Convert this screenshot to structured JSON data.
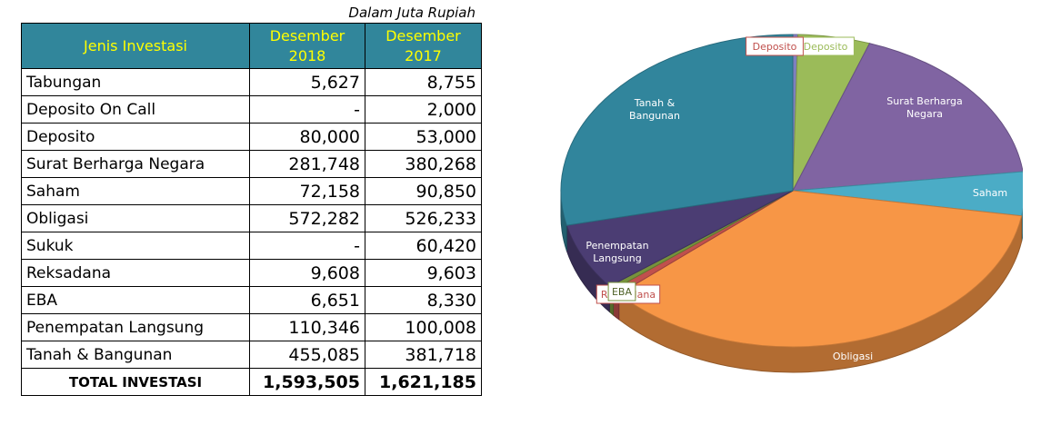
{
  "note": "Dalam Juta Rupiah",
  "table": {
    "header": {
      "category": "Jenis Investasi",
      "col1": "Desember 2018",
      "col2": "Desember 2017"
    },
    "rows": [
      {
        "name": "Tabungan",
        "y2018": "5,627",
        "y2017": "8,755"
      },
      {
        "name": "Deposito On Call",
        "y2018": "-",
        "y2017": "2,000"
      },
      {
        "name": "Deposito",
        "y2018": "80,000",
        "y2017": "53,000"
      },
      {
        "name": "Surat Berharga Negara",
        "y2018": "281,748",
        "y2017": "380,268"
      },
      {
        "name": "Saham",
        "y2018": "72,158",
        "y2017": "90,850"
      },
      {
        "name": "Obligasi",
        "y2018": "572,282",
        "y2017": "526,233"
      },
      {
        "name": "Sukuk",
        "y2018": "-",
        "y2017": "60,420"
      },
      {
        "name": "Reksadana",
        "y2018": "9,608",
        "y2017": "9,603"
      },
      {
        "name": "EBA",
        "y2018": "6,651",
        "y2017": "8,330"
      },
      {
        "name": "Penempatan Langsung",
        "y2018": "110,346",
        "y2017": "100,008"
      },
      {
        "name": "Tanah & Bangunan",
        "y2018": "455,085",
        "y2017": "381,718"
      }
    ],
    "total": {
      "name": "TOTAL INVESTASI",
      "y2018": "1,593,505",
      "y2017": "1,621,185"
    }
  },
  "chart_data": {
    "type": "pie",
    "title": "",
    "slices": [
      {
        "label": "",
        "value": 5627,
        "color": "#7f7fbf"
      },
      {
        "label": "Deposito",
        "value": 80000,
        "color": "#9bbb59",
        "label_color": "#9bbb59"
      },
      {
        "label": "Surat Berharga Negara",
        "value": 281748,
        "color": "#8064a2",
        "label_color": "#ffffff"
      },
      {
        "label": "Saham",
        "value": 72158,
        "color": "#4bacc6",
        "label_color": "#ffffff"
      },
      {
        "label": "Obligasi",
        "value": 572282,
        "color": "#f79646",
        "label_color": "#ffffff"
      },
      {
        "label": "Reksadana",
        "value": 9608,
        "color": "#c0504d",
        "label_color": "#c0504d"
      },
      {
        "label": "EBA",
        "value": 6651,
        "color": "#77933c",
        "label_color": "#4f6228"
      },
      {
        "label": "Penempatan Langsung",
        "value": 110346,
        "color": "#4b3d73",
        "label_color": "#ffffff"
      },
      {
        "label": "Tanah & Bangunan",
        "value": 455085,
        "color": "#31859c",
        "label_color": "#ffffff"
      }
    ],
    "extra_labels": [
      {
        "label": "Deposito",
        "color": "#c0504d"
      }
    ]
  }
}
